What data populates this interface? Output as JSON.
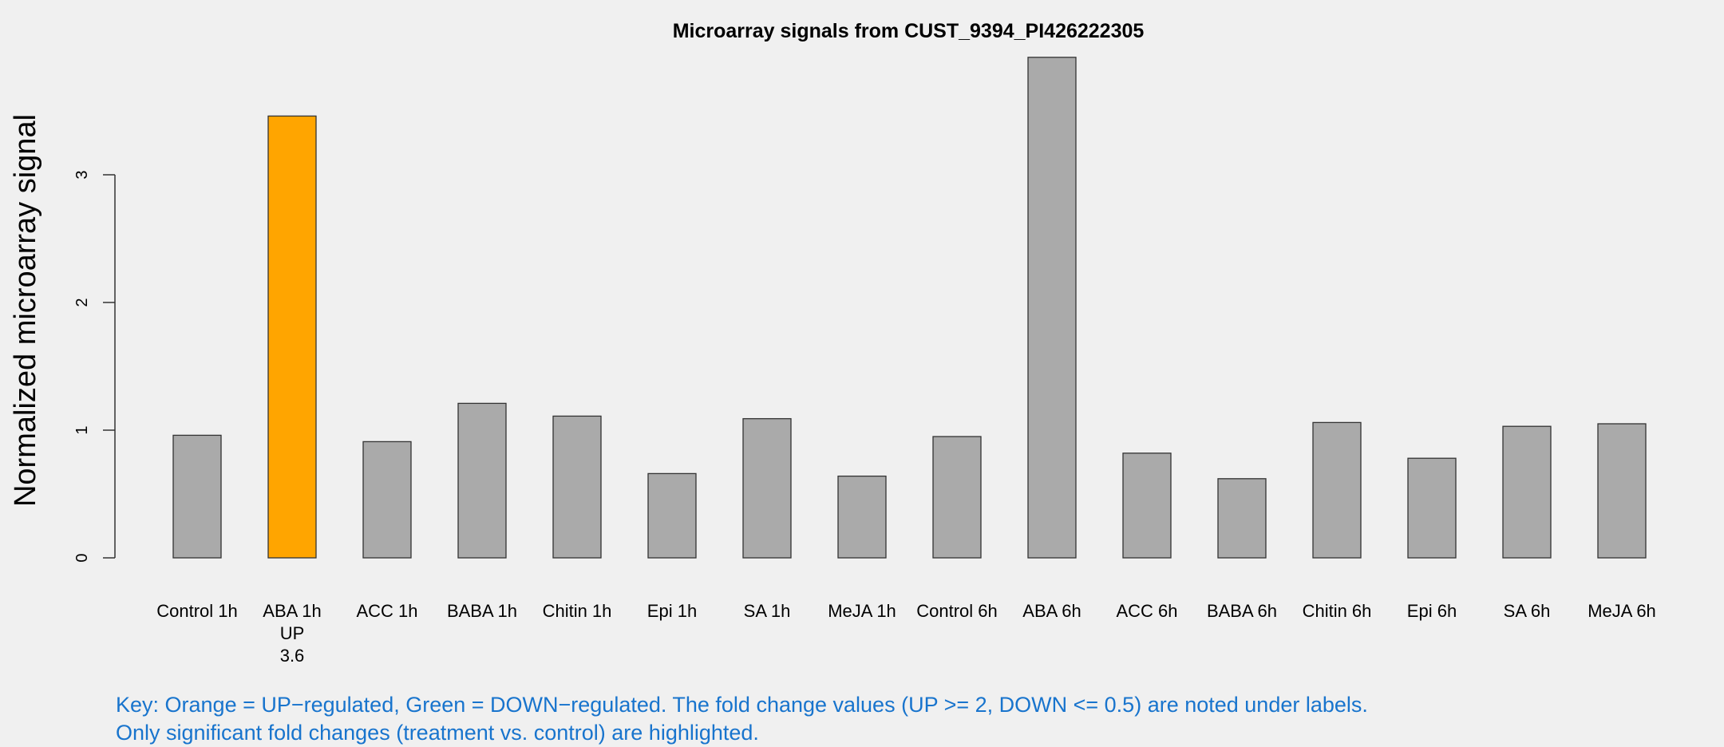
{
  "chart_data": {
    "type": "bar",
    "title": "Microarray signals from CUST_9394_PI426222305",
    "xlabel": "",
    "ylabel": "Normalized microarray signal",
    "ylim": [
      0,
      3.95
    ],
    "yticks": [
      0,
      1,
      2,
      3
    ],
    "grid": false,
    "categories": [
      "Control 1h",
      "ABA 1h",
      "ACC 1h",
      "BABA 1h",
      "Chitin 1h",
      "Epi 1h",
      "SA 1h",
      "MeJA 1h",
      "Control 6h",
      "ABA 6h",
      "ACC 6h",
      "BABA 6h",
      "Chitin 6h",
      "Epi 6h",
      "SA 6h",
      "MeJA 6h"
    ],
    "values": [
      0.96,
      3.46,
      0.91,
      1.21,
      1.11,
      0.66,
      1.09,
      0.64,
      0.95,
      3.92,
      0.82,
      0.62,
      1.06,
      0.78,
      1.03,
      1.05
    ],
    "bar_colors": [
      "#aaaaaa",
      "#ffa500",
      "#aaaaaa",
      "#aaaaaa",
      "#aaaaaa",
      "#aaaaaa",
      "#aaaaaa",
      "#aaaaaa",
      "#aaaaaa",
      "#aaaaaa",
      "#aaaaaa",
      "#aaaaaa",
      "#aaaaaa",
      "#aaaaaa",
      "#aaaaaa",
      "#aaaaaa"
    ],
    "annotations": [
      {
        "category": "ABA 1h",
        "lines": [
          "UP",
          "3.6"
        ]
      }
    ],
    "key": [
      "Key: Orange = UP−regulated, Green = DOWN−regulated. The fold change values (UP >= 2, DOWN <= 0.5) are noted under labels.",
      "Only significant fold changes (treatment vs. control) are highlighted."
    ],
    "key_color": "#1874cd"
  }
}
